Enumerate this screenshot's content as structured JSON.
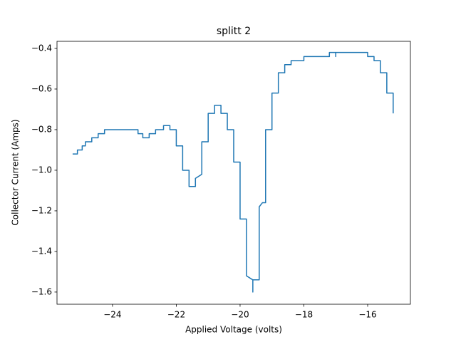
{
  "chart_data": {
    "type": "line",
    "title": "splitt 2",
    "x_label": "Applied Voltage (volts)",
    "y_label": "Collector Current (Amps)",
    "x": [
      -25.25,
      -25.1,
      -25.1,
      -24.95,
      -24.95,
      -24.85,
      -24.85,
      -24.65,
      -24.65,
      -24.45,
      -24.45,
      -24.25,
      -24.25,
      -23.2,
      -23.2,
      -23.05,
      -23.05,
      -22.85,
      -22.85,
      -22.65,
      -22.65,
      -22.4,
      -22.4,
      -22.2,
      -22.2,
      -22.0,
      -22.0,
      -21.8,
      -21.8,
      -21.6,
      -21.6,
      -21.4,
      -21.4,
      -21.2,
      -21.2,
      -21.0,
      -21.0,
      -20.8,
      -20.8,
      -20.6,
      -20.6,
      -20.4,
      -20.4,
      -20.2,
      -20.2,
      -20.0,
      -20.0,
      -19.8,
      -19.8,
      -19.6,
      -19.6,
      -19.6,
      -19.4,
      -19.4,
      -19.3,
      -19.2,
      -19.2,
      -19.0,
      -19.0,
      -18.8,
      -18.8,
      -18.6,
      -18.6,
      -18.4,
      -18.4,
      -18.0,
      -18.0,
      -17.2,
      -17.2,
      -17.0,
      -17.0,
      -17.0,
      -16.0,
      -16.0,
      -15.8,
      -15.8,
      -15.6,
      -15.6,
      -15.4,
      -15.4,
      -15.2,
      -15.2
    ],
    "series": [
      {
        "name": "Collector Current",
        "color": "#1f77b4",
        "values": [
          -0.92,
          -0.92,
          -0.9,
          -0.9,
          -0.88,
          -0.88,
          -0.86,
          -0.86,
          -0.84,
          -0.84,
          -0.82,
          -0.82,
          -0.8,
          -0.8,
          -0.82,
          -0.82,
          -0.84,
          -0.84,
          -0.82,
          -0.82,
          -0.8,
          -0.8,
          -0.78,
          -0.78,
          -0.8,
          -0.8,
          -0.88,
          -0.88,
          -1.0,
          -1.0,
          -1.08,
          -1.08,
          -1.04,
          -1.02,
          -0.86,
          -0.86,
          -0.72,
          -0.72,
          -0.68,
          -0.68,
          -0.72,
          -0.72,
          -0.8,
          -0.8,
          -0.96,
          -0.96,
          -1.24,
          -1.24,
          -1.52,
          -1.54,
          -1.6,
          -1.54,
          -1.54,
          -1.18,
          -1.16,
          -1.16,
          -0.8,
          -0.8,
          -0.62,
          -0.62,
          -0.52,
          -0.52,
          -0.48,
          -0.48,
          -0.46,
          -0.46,
          -0.44,
          -0.44,
          -0.42,
          -0.42,
          -0.44,
          -0.42,
          -0.42,
          -0.44,
          -0.44,
          -0.46,
          -0.46,
          -0.52,
          -0.52,
          -0.62,
          -0.62,
          -0.72
        ]
      }
    ],
    "xlim": [
      -25.74,
      -14.66
    ],
    "ylim": [
      -1.66,
      -0.365
    ],
    "xticks": [
      {
        "value": -24,
        "label": "−24"
      },
      {
        "value": -22,
        "label": "−22"
      },
      {
        "value": -20,
        "label": "−20"
      },
      {
        "value": -18,
        "label": "−18"
      },
      {
        "value": -16,
        "label": "−16"
      }
    ],
    "yticks": [
      {
        "value": -1.6,
        "label": "−1.6"
      },
      {
        "value": -1.4,
        "label": "−1.4"
      },
      {
        "value": -1.2,
        "label": "−1.2"
      },
      {
        "value": -1.0,
        "label": "−1.0"
      },
      {
        "value": -0.8,
        "label": "−0.8"
      },
      {
        "value": -0.6,
        "label": "−0.6"
      },
      {
        "value": -0.4,
        "label": "−0.4"
      }
    ],
    "grid": false
  }
}
